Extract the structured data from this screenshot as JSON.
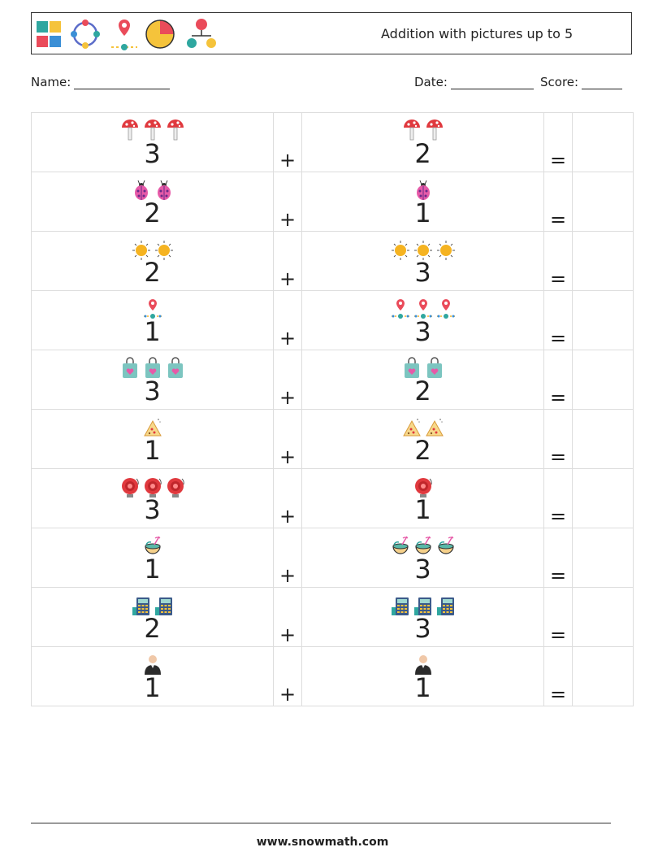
{
  "header": {
    "title": "Addition with pictures up to 5",
    "logo_icons": [
      "puzzle-icon",
      "cycle-icon",
      "location-pin-icon",
      "pie-chart-icon",
      "hierarchy-icon"
    ]
  },
  "meta": {
    "name_label": "Name:",
    "date_label": "Date:",
    "score_label": "Score:"
  },
  "operators": {
    "plus": "+",
    "equals": "="
  },
  "rows": [
    {
      "a": {
        "count": 3,
        "icon": "mushroom-icon",
        "number": "3"
      },
      "b": {
        "count": 2,
        "icon": "mushroom-icon",
        "number": "2"
      }
    },
    {
      "a": {
        "count": 2,
        "icon": "ladybug-icon",
        "number": "2"
      },
      "b": {
        "count": 1,
        "icon": "ladybug-icon",
        "number": "1"
      }
    },
    {
      "a": {
        "count": 2,
        "icon": "sun-icon",
        "number": "2"
      },
      "b": {
        "count": 3,
        "icon": "sun-icon",
        "number": "3"
      }
    },
    {
      "a": {
        "count": 1,
        "icon": "map-pin-path-icon",
        "number": "1"
      },
      "b": {
        "count": 3,
        "icon": "map-pin-path-icon",
        "number": "3"
      }
    },
    {
      "a": {
        "count": 3,
        "icon": "shopping-bag-icon",
        "number": "3"
      },
      "b": {
        "count": 2,
        "icon": "shopping-bag-icon",
        "number": "2"
      }
    },
    {
      "a": {
        "count": 1,
        "icon": "pizza-slice-icon",
        "number": "1"
      },
      "b": {
        "count": 2,
        "icon": "pizza-slice-icon",
        "number": "2"
      }
    },
    {
      "a": {
        "count": 3,
        "icon": "alarm-bell-icon",
        "number": "3"
      },
      "b": {
        "count": 1,
        "icon": "alarm-bell-icon",
        "number": "1"
      }
    },
    {
      "a": {
        "count": 1,
        "icon": "coconut-drink-icon",
        "number": "1"
      },
      "b": {
        "count": 3,
        "icon": "coconut-drink-icon",
        "number": "3"
      }
    },
    {
      "a": {
        "count": 2,
        "icon": "calculator-icon",
        "number": "2"
      },
      "b": {
        "count": 3,
        "icon": "calculator-icon",
        "number": "3"
      }
    },
    {
      "a": {
        "count": 1,
        "icon": "person-icon",
        "number": "1"
      },
      "b": {
        "count": 1,
        "icon": "person-icon",
        "number": "1"
      }
    }
  ],
  "footer": {
    "url": "www.snowmath.com"
  }
}
